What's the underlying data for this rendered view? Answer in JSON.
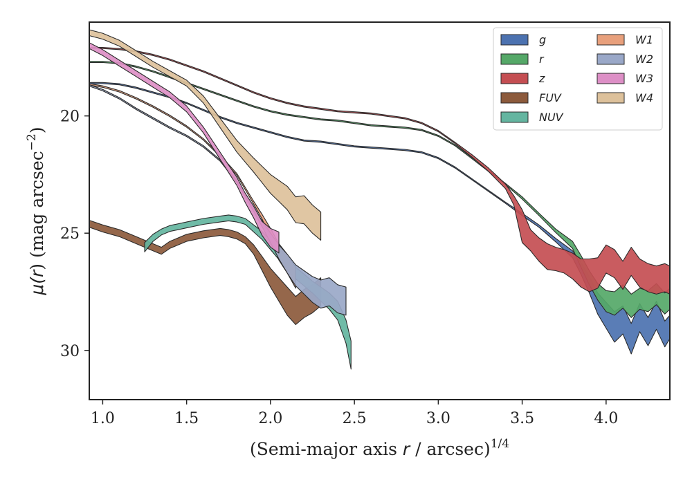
{
  "chart_data": {
    "type": "area",
    "xlabel": "(Semi-major axis r / arcsec)",
    "xlabel_main": "(Semi-major axis ",
    "xlabel_var": "r",
    "xlabel_rest": " / arcsec)",
    "xlabel_exp": "1/4",
    "ylabel": "μ(r) (mag arcsec−2)",
    "ylabel_mu": "μ(",
    "ylabel_var": "r",
    "ylabel_mid": ") (mag arcsec",
    "ylabel_exp": "−2",
    "ylabel_close": ")",
    "xlim": [
      0.92,
      4.38
    ],
    "ylim": [
      32.1,
      16.0
    ],
    "y_inverted": true,
    "xticks": [
      1.0,
      1.5,
      2.0,
      2.5,
      3.0,
      3.5,
      4.0
    ],
    "xtick_labels": [
      "1.0",
      "1.5",
      "2.0",
      "2.5",
      "3.0",
      "3.5",
      "4.0"
    ],
    "yticks": [
      20,
      25,
      30
    ],
    "ytick_labels": [
      "20",
      "25",
      "30"
    ],
    "grid": false,
    "legend_position": "top-right",
    "legend_columns": 2,
    "series": [
      {
        "name": "g",
        "color": "#4c72b0",
        "x": [
          0.92,
          1.0,
          1.1,
          1.2,
          1.3,
          1.4,
          1.5,
          1.6,
          1.7,
          1.8,
          1.9,
          2.0,
          2.1,
          2.2,
          2.3,
          2.4,
          2.5,
          2.6,
          2.7,
          2.8,
          2.9,
          3.0,
          3.1,
          3.2,
          3.3,
          3.4,
          3.5,
          3.6,
          3.7,
          3.8,
          3.85,
          3.9,
          3.95,
          4.0,
          4.05,
          4.1,
          4.15,
          4.2,
          4.25,
          4.3,
          4.35,
          4.38
        ],
        "y": [
          18.6,
          18.6,
          18.65,
          18.8,
          19.0,
          19.2,
          19.45,
          19.75,
          20.05,
          20.3,
          20.5,
          20.7,
          20.9,
          21.05,
          21.1,
          21.2,
          21.3,
          21.35,
          21.4,
          21.45,
          21.55,
          21.8,
          22.2,
          22.7,
          23.2,
          23.7,
          24.2,
          24.7,
          25.3,
          25.9,
          26.5,
          27.2,
          28.0,
          28.5,
          29.0,
          28.7,
          29.5,
          28.6,
          29.2,
          28.5,
          29.3,
          29.0
        ],
        "d": [
          0.05,
          0.05,
          0.05,
          0.05,
          0.05,
          0.05,
          0.05,
          0.05,
          0.05,
          0.05,
          0.05,
          0.05,
          0.05,
          0.05,
          0.05,
          0.05,
          0.05,
          0.05,
          0.05,
          0.05,
          0.05,
          0.05,
          0.05,
          0.05,
          0.05,
          0.05,
          0.1,
          0.1,
          0.15,
          0.3,
          0.5,
          0.7,
          0.9,
          1.1,
          1.3,
          1.2,
          1.3,
          1.2,
          1.2,
          1.2,
          1.1,
          1.0
        ]
      },
      {
        "name": "r",
        "color": "#55a868",
        "x": [
          0.92,
          1.0,
          1.1,
          1.2,
          1.3,
          1.4,
          1.5,
          1.6,
          1.7,
          1.8,
          1.9,
          2.0,
          2.1,
          2.2,
          2.3,
          2.4,
          2.5,
          2.6,
          2.7,
          2.8,
          2.9,
          3.0,
          3.1,
          3.2,
          3.3,
          3.4,
          3.5,
          3.6,
          3.7,
          3.8,
          3.85,
          3.9,
          3.95,
          4.0,
          4.05,
          4.1,
          4.15,
          4.2,
          4.25,
          4.3,
          4.35,
          4.38
        ],
        "y": [
          17.7,
          17.7,
          17.75,
          17.9,
          18.1,
          18.35,
          18.6,
          18.85,
          19.1,
          19.35,
          19.6,
          19.8,
          19.95,
          20.05,
          20.15,
          20.2,
          20.3,
          20.4,
          20.45,
          20.5,
          20.6,
          20.85,
          21.25,
          21.8,
          22.35,
          22.9,
          23.5,
          24.2,
          24.9,
          25.5,
          26.2,
          26.9,
          27.5,
          27.9,
          28.0,
          27.7,
          28.1,
          27.8,
          27.9,
          27.6,
          28.0,
          27.8
        ],
        "d": [
          0.05,
          0.05,
          0.05,
          0.05,
          0.05,
          0.05,
          0.05,
          0.05,
          0.05,
          0.05,
          0.05,
          0.05,
          0.05,
          0.05,
          0.05,
          0.05,
          0.05,
          0.05,
          0.05,
          0.05,
          0.05,
          0.05,
          0.05,
          0.05,
          0.05,
          0.05,
          0.1,
          0.1,
          0.15,
          0.3,
          0.5,
          0.6,
          0.7,
          0.9,
          1.0,
          1.0,
          1.0,
          0.9,
          0.9,
          0.9,
          0.9,
          0.9
        ]
      },
      {
        "name": "z",
        "color": "#c44e52",
        "x": [
          0.92,
          1.0,
          1.1,
          1.2,
          1.3,
          1.4,
          1.5,
          1.6,
          1.7,
          1.8,
          1.9,
          2.0,
          2.1,
          2.2,
          2.3,
          2.4,
          2.5,
          2.6,
          2.7,
          2.8,
          2.9,
          3.0,
          3.1,
          3.2,
          3.3,
          3.4,
          3.45,
          3.5,
          3.55,
          3.6,
          3.65,
          3.7,
          3.75,
          3.8,
          3.85,
          3.9,
          3.95,
          4.0,
          4.05,
          4.1,
          4.15,
          4.2,
          4.25,
          4.3,
          4.35,
          4.38
        ],
        "y": [
          17.1,
          17.1,
          17.15,
          17.25,
          17.4,
          17.6,
          17.85,
          18.1,
          18.4,
          18.7,
          19.0,
          19.25,
          19.45,
          19.6,
          19.7,
          19.8,
          19.85,
          19.9,
          20.0,
          20.1,
          20.3,
          20.65,
          21.15,
          21.7,
          22.3,
          23.0,
          23.6,
          24.7,
          25.3,
          25.7,
          26.0,
          26.1,
          26.2,
          26.4,
          26.7,
          26.8,
          26.7,
          26.1,
          26.3,
          26.8,
          26.2,
          26.7,
          26.9,
          27.0,
          26.9,
          27.0
        ],
        "d": [
          0.05,
          0.05,
          0.05,
          0.05,
          0.05,
          0.05,
          0.05,
          0.05,
          0.05,
          0.05,
          0.05,
          0.05,
          0.05,
          0.05,
          0.05,
          0.05,
          0.05,
          0.05,
          0.05,
          0.05,
          0.05,
          0.05,
          0.05,
          0.1,
          0.15,
          0.2,
          0.4,
          1.4,
          0.9,
          1.0,
          1.1,
          1.0,
          1.0,
          1.1,
          1.2,
          1.4,
          1.3,
          1.2,
          1.2,
          1.2,
          1.2,
          1.2,
          1.2,
          1.2,
          1.2,
          1.2
        ]
      },
      {
        "name": "FUV",
        "color": "#8c5a3c",
        "x": [
          0.92,
          1.0,
          1.1,
          1.2,
          1.3,
          1.35,
          1.4,
          1.5,
          1.6,
          1.7,
          1.75,
          1.8,
          1.85,
          1.9,
          1.95,
          2.0,
          2.05,
          2.1,
          2.15,
          2.2,
          2.25,
          2.3
        ],
        "y": [
          24.6,
          24.8,
          25.0,
          25.3,
          25.6,
          25.75,
          25.5,
          25.2,
          25.05,
          24.95,
          25.0,
          25.1,
          25.3,
          25.7,
          26.3,
          26.9,
          27.4,
          27.9,
          28.3,
          28.0,
          27.8,
          27.5
        ],
        "d": [
          0.3,
          0.3,
          0.3,
          0.3,
          0.3,
          0.3,
          0.3,
          0.3,
          0.3,
          0.3,
          0.3,
          0.3,
          0.3,
          0.4,
          0.6,
          0.8,
          1.0,
          1.2,
          1.2,
          1.2,
          1.2,
          1.2
        ]
      },
      {
        "name": "NUV",
        "color": "#64b5a0",
        "x": [
          1.25,
          1.3,
          1.35,
          1.4,
          1.5,
          1.6,
          1.7,
          1.75,
          1.8,
          1.85,
          1.9,
          1.95,
          2.0,
          2.05,
          2.1,
          2.15,
          2.2,
          2.25,
          2.3,
          2.35,
          2.4,
          2.45,
          2.48
        ],
        "y": [
          25.6,
          25.2,
          24.95,
          24.8,
          24.65,
          24.5,
          24.4,
          24.35,
          24.4,
          24.5,
          24.8,
          25.1,
          25.5,
          25.9,
          26.3,
          26.7,
          27.0,
          27.3,
          27.6,
          27.9,
          28.3,
          29.2,
          30.2
        ],
        "d": [
          0.4,
          0.3,
          0.25,
          0.25,
          0.25,
          0.25,
          0.25,
          0.25,
          0.25,
          0.25,
          0.3,
          0.35,
          0.4,
          0.45,
          0.5,
          0.5,
          0.5,
          0.5,
          0.6,
          0.7,
          0.8,
          1.0,
          1.2
        ]
      },
      {
        "name": "W1",
        "color": "#e8a07c",
        "x": [
          0.92,
          1.0,
          1.1,
          1.2,
          1.3,
          1.4,
          1.5,
          1.6,
          1.7,
          1.8,
          1.85,
          1.9,
          1.95,
          2.0,
          2.05,
          2.1,
          2.15
        ],
        "y": [
          18.65,
          18.75,
          18.95,
          19.25,
          19.6,
          20.0,
          20.45,
          21.0,
          21.7,
          22.5,
          23.1,
          23.7,
          24.3,
          25.0,
          25.8,
          26.3,
          26.9
        ],
        "d": [
          0.06,
          0.06,
          0.06,
          0.06,
          0.06,
          0.06,
          0.06,
          0.06,
          0.06,
          0.08,
          0.1,
          0.12,
          0.2,
          0.4,
          0.7,
          0.8,
          0.9
        ]
      },
      {
        "name": "W2",
        "color": "#9aa8c8",
        "x": [
          0.92,
          1.0,
          1.1,
          1.2,
          1.3,
          1.4,
          1.5,
          1.6,
          1.7,
          1.8,
          1.85,
          1.9,
          1.95,
          2.0,
          2.05,
          2.1,
          2.15,
          2.2,
          2.25,
          2.3,
          2.35,
          2.4,
          2.45
        ],
        "y": [
          18.7,
          18.9,
          19.25,
          19.7,
          20.1,
          20.5,
          20.85,
          21.3,
          21.9,
          22.8,
          23.4,
          24.0,
          24.6,
          25.2,
          25.8,
          26.3,
          26.8,
          27.1,
          27.4,
          27.6,
          27.5,
          27.8,
          27.9
        ],
        "d": [
          0.06,
          0.06,
          0.06,
          0.06,
          0.06,
          0.06,
          0.06,
          0.06,
          0.06,
          0.08,
          0.1,
          0.15,
          0.25,
          0.4,
          0.6,
          0.8,
          0.9,
          1.0,
          1.1,
          1.2,
          1.2,
          1.2,
          1.2
        ]
      },
      {
        "name": "W3",
        "color": "#dd8fc6",
        "x": [
          0.92,
          1.0,
          1.1,
          1.2,
          1.3,
          1.4,
          1.5,
          1.6,
          1.7,
          1.8,
          1.85,
          1.9,
          1.95,
          2.0,
          2.05
        ],
        "y": [
          17.0,
          17.3,
          17.75,
          18.2,
          18.65,
          19.1,
          19.7,
          20.6,
          21.7,
          22.8,
          23.5,
          24.1,
          24.8,
          25.2,
          25.4
        ],
        "d": [
          0.25,
          0.25,
          0.25,
          0.25,
          0.25,
          0.25,
          0.25,
          0.25,
          0.3,
          0.35,
          0.4,
          0.5,
          0.6,
          0.8,
          0.9
        ]
      },
      {
        "name": "W4",
        "color": "#ddc19b",
        "x": [
          0.92,
          1.0,
          1.1,
          1.2,
          1.3,
          1.4,
          1.5,
          1.6,
          1.7,
          1.8,
          1.9,
          1.95,
          2.0,
          2.05,
          2.1,
          2.15,
          2.2,
          2.25,
          2.3
        ],
        "y": [
          16.45,
          16.6,
          16.9,
          17.35,
          17.8,
          18.2,
          18.6,
          19.3,
          20.3,
          21.3,
          22.1,
          22.5,
          22.9,
          23.2,
          23.5,
          24.0,
          24.0,
          24.4,
          24.7
        ],
        "d": [
          0.25,
          0.25,
          0.25,
          0.25,
          0.25,
          0.25,
          0.25,
          0.3,
          0.4,
          0.5,
          0.6,
          0.7,
          0.8,
          0.9,
          1.0,
          1.1,
          1.2,
          1.2,
          1.2
        ]
      }
    ]
  }
}
